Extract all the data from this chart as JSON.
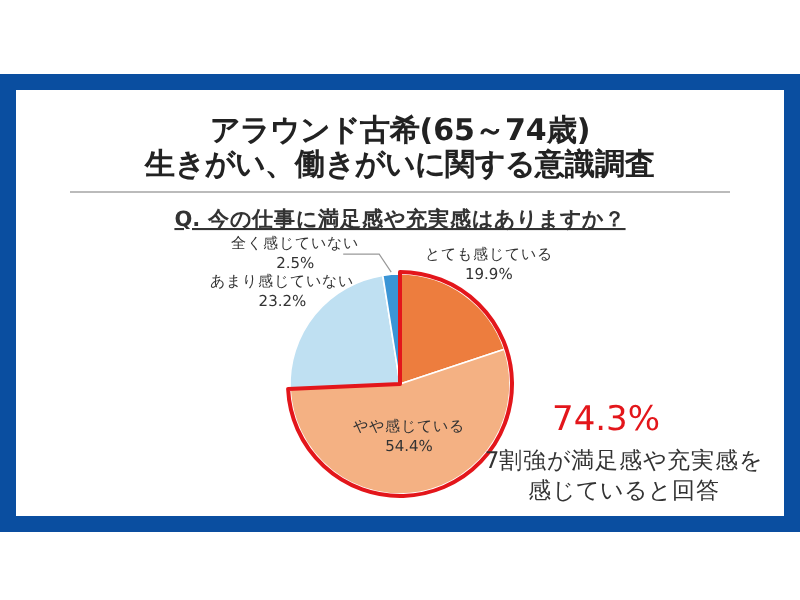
{
  "chart_data": {
    "type": "pie",
    "title": "アラウンド古希(65～74歳)\n生きがい、働きがいに関する意識調査",
    "subtitle": "Q. 今の仕事に満足感や充実感はありますか？",
    "categories": [
      "とても感じている",
      "やや感じている",
      "あまり感じていない",
      "全く感じていない"
    ],
    "values": [
      19.9,
      54.4,
      23.2,
      2.5
    ],
    "colors": [
      "#ed7d3e",
      "#f4b183",
      "#bfe0f2",
      "#3a95d6"
    ],
    "value_labels": [
      "19.9%",
      "54.4%",
      "23.2%",
      "2.5%"
    ],
    "annotations": [
      "74.3%",
      "7割強が満足感や充実感を感じていると回答"
    ]
  }
}
